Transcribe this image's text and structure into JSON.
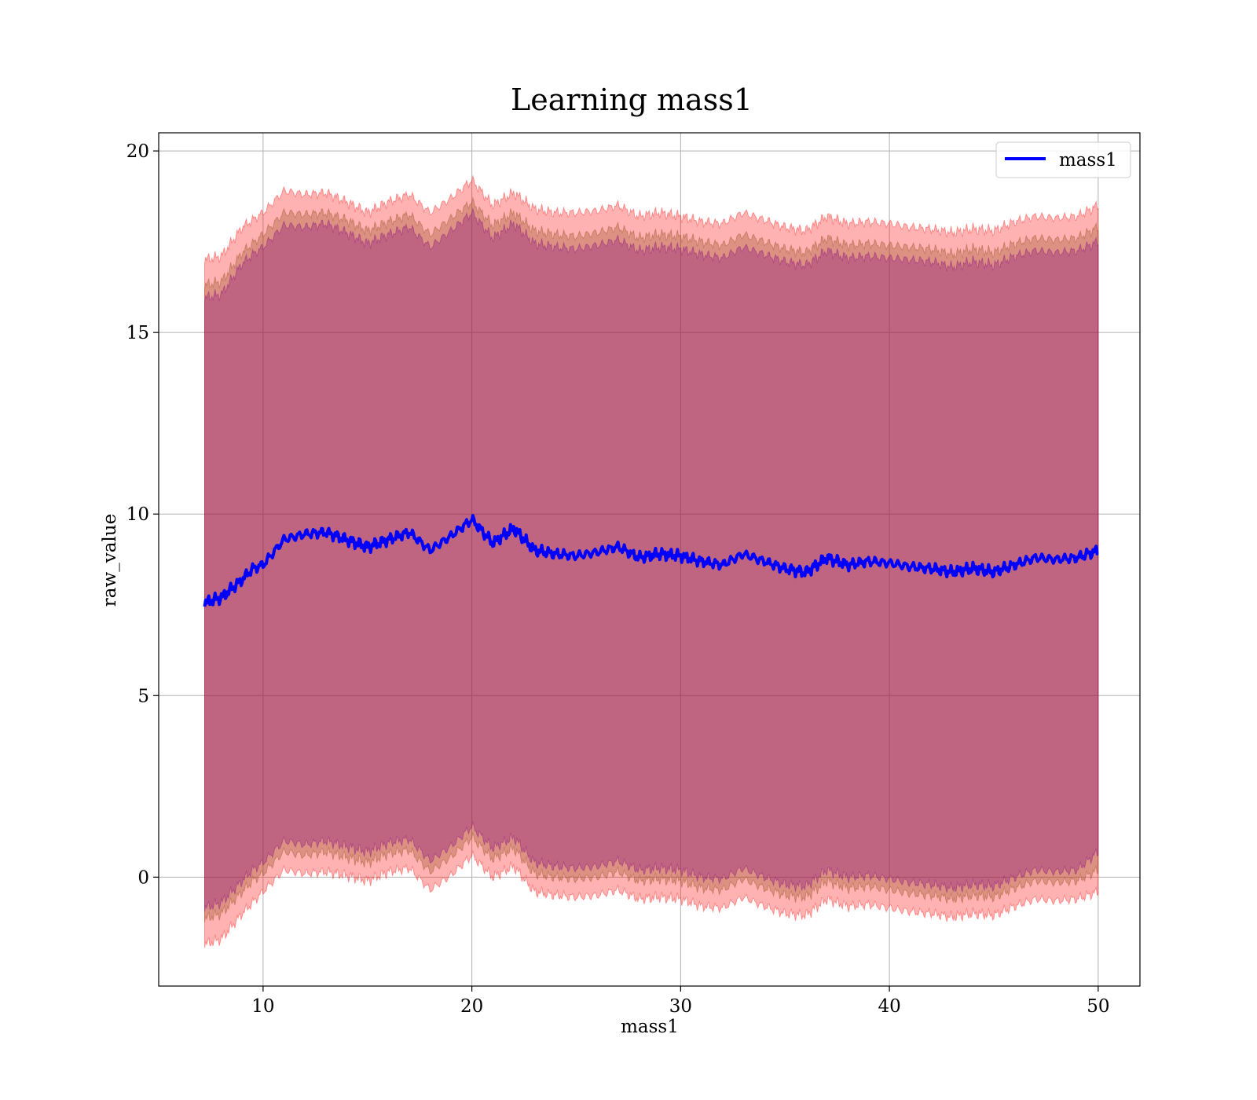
{
  "chart_data": {
    "type": "line",
    "title": "Learning mass1",
    "xlabel": "mass1",
    "ylabel": "raw_value",
    "xlim": [
      5,
      52
    ],
    "ylim": [
      -3,
      20.5
    ],
    "xticks": [
      10,
      20,
      30,
      40,
      50
    ],
    "yticks": [
      0,
      5,
      10,
      15,
      20
    ],
    "xtick_labels": [
      "10",
      "20",
      "30",
      "40",
      "50"
    ],
    "ytick_labels": [
      "0",
      "5",
      "10",
      "15",
      "20"
    ],
    "grid": true,
    "legend": {
      "position": "top-right",
      "entries": [
        "mass1"
      ]
    },
    "colors": {
      "line": "#0000ff",
      "band_outer": "#ff0000",
      "band_middle": "#8b4513",
      "band_inner": "#800080"
    },
    "x": [
      7.2,
      8,
      9,
      9.5,
      10,
      11,
      12,
      13,
      14,
      15,
      16,
      17,
      18,
      19,
      20,
      21,
      22,
      23,
      24,
      25,
      26,
      27,
      28,
      29,
      30,
      31,
      32,
      33,
      34,
      35,
      36,
      37,
      38,
      39,
      40,
      41,
      42,
      43,
      44,
      45,
      46,
      47,
      48,
      49,
      50
    ],
    "series": [
      {
        "name": "mass1",
        "values": [
          7.55,
          7.7,
          8.2,
          8.5,
          8.6,
          9.3,
          9.45,
          9.5,
          9.3,
          9.1,
          9.3,
          9.5,
          9.0,
          9.4,
          9.85,
          9.2,
          9.6,
          9.0,
          8.9,
          8.85,
          8.95,
          9.1,
          8.8,
          8.9,
          8.85,
          8.7,
          8.6,
          8.9,
          8.7,
          8.5,
          8.4,
          8.8,
          8.6,
          8.7,
          8.65,
          8.55,
          8.5,
          8.4,
          8.5,
          8.4,
          8.6,
          8.8,
          8.75,
          8.8,
          9.0
        ]
      }
    ],
    "bands": [
      {
        "lower": [
          -1.85,
          -1.7,
          -1.0,
          -0.7,
          -0.4,
          0.2,
          0.1,
          0.15,
          0.05,
          -0.1,
          0.15,
          0.25,
          -0.35,
          0.05,
          0.6,
          0.0,
          0.3,
          -0.4,
          -0.5,
          -0.55,
          -0.5,
          -0.35,
          -0.6,
          -0.55,
          -0.6,
          -0.8,
          -0.85,
          -0.55,
          -0.8,
          -1.0,
          -1.05,
          -0.6,
          -0.8,
          -0.75,
          -0.85,
          -0.95,
          -1.0,
          -1.1,
          -1.0,
          -1.05,
          -0.8,
          -0.6,
          -0.65,
          -0.6,
          -0.4
        ],
        "upper": [
          17.0,
          17.1,
          17.9,
          18.1,
          18.3,
          18.9,
          18.8,
          18.85,
          18.6,
          18.3,
          18.6,
          18.8,
          18.3,
          18.7,
          19.2,
          18.5,
          18.85,
          18.4,
          18.3,
          18.3,
          18.35,
          18.5,
          18.2,
          18.3,
          18.2,
          18.05,
          18.0,
          18.3,
          18.1,
          17.9,
          17.8,
          18.2,
          18.0,
          18.05,
          18.0,
          17.9,
          17.85,
          17.75,
          17.85,
          17.8,
          18.05,
          18.2,
          18.15,
          18.2,
          18.5
        ]
      },
      {
        "lower": [
          -1.15,
          -1.0,
          -0.4,
          -0.1,
          0.1,
          0.7,
          0.6,
          0.7,
          0.55,
          0.4,
          0.65,
          0.75,
          0.15,
          0.55,
          1.1,
          0.5,
          0.8,
          0.1,
          0.0,
          -0.05,
          0.0,
          0.15,
          -0.1,
          -0.05,
          -0.1,
          -0.3,
          -0.35,
          -0.05,
          -0.3,
          -0.5,
          -0.55,
          -0.1,
          -0.3,
          -0.25,
          -0.35,
          -0.45,
          -0.5,
          -0.6,
          -0.5,
          -0.55,
          -0.3,
          -0.1,
          -0.15,
          -0.1,
          0.2
        ],
        "upper": [
          16.3,
          16.4,
          17.2,
          17.45,
          17.7,
          18.3,
          18.25,
          18.3,
          18.1,
          17.8,
          18.05,
          18.25,
          17.7,
          18.15,
          18.6,
          17.95,
          18.3,
          17.8,
          17.7,
          17.65,
          17.75,
          17.9,
          17.6,
          17.7,
          17.65,
          17.5,
          17.4,
          17.7,
          17.5,
          17.3,
          17.2,
          17.6,
          17.4,
          17.45,
          17.4,
          17.35,
          17.3,
          17.15,
          17.3,
          17.2,
          17.45,
          17.6,
          17.55,
          17.6,
          17.9
        ]
      },
      {
        "lower": [
          -0.85,
          -0.7,
          -0.1,
          0.2,
          0.4,
          1.0,
          0.9,
          1.0,
          0.85,
          0.7,
          0.95,
          1.05,
          0.45,
          0.85,
          1.4,
          0.8,
          1.1,
          0.4,
          0.3,
          0.25,
          0.3,
          0.45,
          0.2,
          0.25,
          0.2,
          0.0,
          -0.05,
          0.25,
          0.0,
          -0.2,
          -0.25,
          0.2,
          0.0,
          0.05,
          -0.05,
          -0.15,
          -0.2,
          -0.3,
          -0.2,
          -0.25,
          0.0,
          0.2,
          0.15,
          0.2,
          0.7
        ],
        "upper": [
          15.95,
          16.05,
          16.9,
          17.15,
          17.35,
          17.95,
          17.9,
          18.0,
          17.75,
          17.45,
          17.7,
          17.9,
          17.35,
          17.8,
          18.3,
          17.6,
          18.0,
          17.45,
          17.35,
          17.3,
          17.4,
          17.55,
          17.25,
          17.35,
          17.3,
          17.15,
          17.05,
          17.35,
          17.15,
          16.95,
          16.85,
          17.25,
          17.05,
          17.1,
          17.05,
          17.0,
          16.95,
          16.8,
          16.95,
          16.85,
          17.1,
          17.25,
          17.2,
          17.25,
          17.5
        ]
      }
    ]
  }
}
